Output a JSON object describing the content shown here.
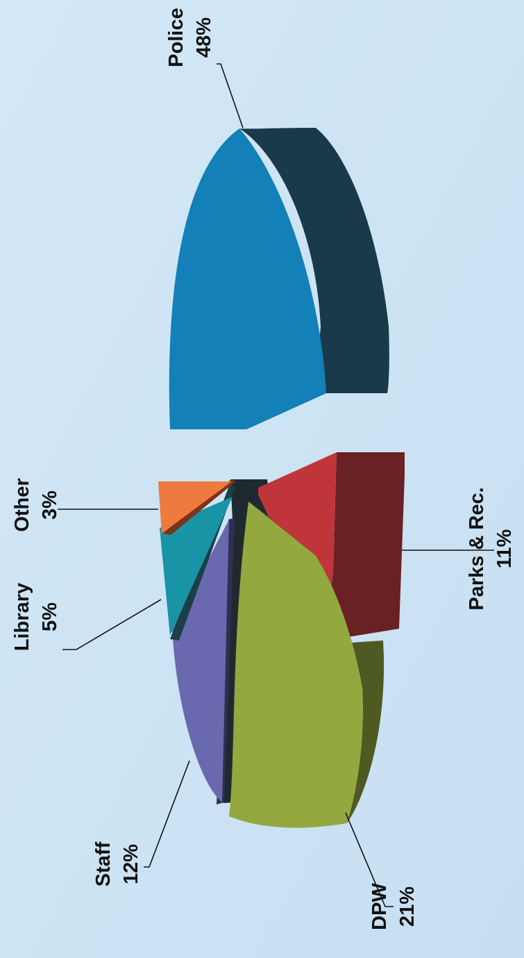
{
  "chart_data": {
    "type": "pie",
    "style": "3d exploded, image rotated 90 degrees counter-clockwise",
    "slices": [
      {
        "label": "Police",
        "value": 48,
        "value_label": "48%",
        "color": "#1380b8",
        "side_color": "#183a4a"
      },
      {
        "label": "Parks & Rec.",
        "value": 11,
        "value_label": "11%",
        "color": "#c0353a",
        "side_color": "#6a2124"
      },
      {
        "label": "DPW",
        "value": 21,
        "value_label": "21%",
        "color": "#93a83e",
        "side_color": "#4f5a22"
      },
      {
        "label": "Staff",
        "value": 12,
        "value_label": "12%",
        "color": "#6a69b0",
        "side_color": "#2f3050"
      },
      {
        "label": "Library",
        "value": 5,
        "value_label": "5%",
        "color": "#1993a6",
        "side_color": "#1a3f48"
      },
      {
        "label": "Other",
        "value": 3,
        "value_label": "3%",
        "color": "#ef7a3f",
        "side_color": "#7a3418"
      }
    ]
  }
}
